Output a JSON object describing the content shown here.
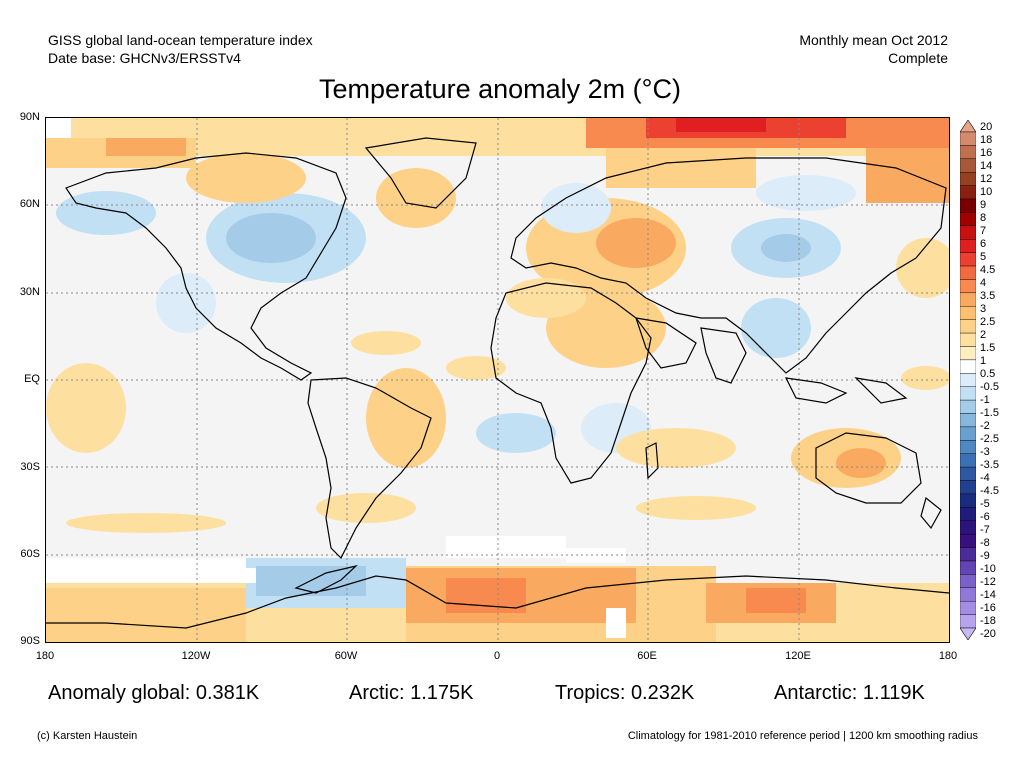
{
  "header": {
    "line1_left": "GISS global land-ocean temperature index",
    "line2_left": "Date base: GHCNv3/ERSSTv4",
    "line1_right": "Monthly mean Oct 2012",
    "line2_right": "Complete"
  },
  "title": "Temperature anomaly 2m (°C)",
  "map": {
    "lat_labels": [
      "90N",
      "60N",
      "30N",
      "EQ",
      "30S",
      "60S",
      "90S"
    ],
    "lon_labels": [
      "180",
      "120W",
      "60W",
      "0",
      "60E",
      "120E",
      "180"
    ],
    "projection": "equirectangular",
    "gridlines": "dotted"
  },
  "legend": {
    "levels": [
      "20",
      "18",
      "16",
      "14",
      "12",
      "10",
      "9",
      "8",
      "7",
      "6",
      "5",
      "4.5",
      "4",
      "3.5",
      "3",
      "2.5",
      "2",
      "1.5",
      "1",
      "0.5",
      "-0.5",
      "-1",
      "-1.5",
      "-2",
      "-2.5",
      "-3",
      "-3.5",
      "-4",
      "-4.5",
      "-5",
      "-6",
      "-7",
      "-8",
      "-9",
      "-10",
      "-12",
      "-14",
      "-16",
      "-18",
      "-20"
    ],
    "colors": [
      "#e8a48a",
      "#d48a6c",
      "#c07050",
      "#a85838",
      "#964020",
      "#8a2010",
      "#780000",
      "#a00000",
      "#c81010",
      "#e02020",
      "#ec4030",
      "#f46a40",
      "#f88a50",
      "#faaa60",
      "#fcc070",
      "#fdd288",
      "#fde0a0",
      "#fdeec0",
      "#ffffff",
      "#dcecf8",
      "#c2e0f4",
      "#a4cce8",
      "#86b6dc",
      "#6aa0d0",
      "#5088c2",
      "#3c70b4",
      "#2e58a2",
      "#224090",
      "#1a2c80",
      "#201c7c",
      "#2c127c",
      "#3a1080",
      "#4c2a98",
      "#6244b4",
      "#7a60c8",
      "#9078d8",
      "#a48ee4",
      "#b8a4ee",
      "#c8b8f4"
    ]
  },
  "stats": {
    "global": "Anomaly global: 0.381K",
    "arctic": "Arctic: 1.175K",
    "tropics": "Tropics: 0.232K",
    "antarctic": "Antarctic: 1.119K"
  },
  "footer": {
    "left": "(c) Karsten Haustein",
    "right": "Climatology for 1981-2010 reference period | 1200 km smoothing radius"
  }
}
